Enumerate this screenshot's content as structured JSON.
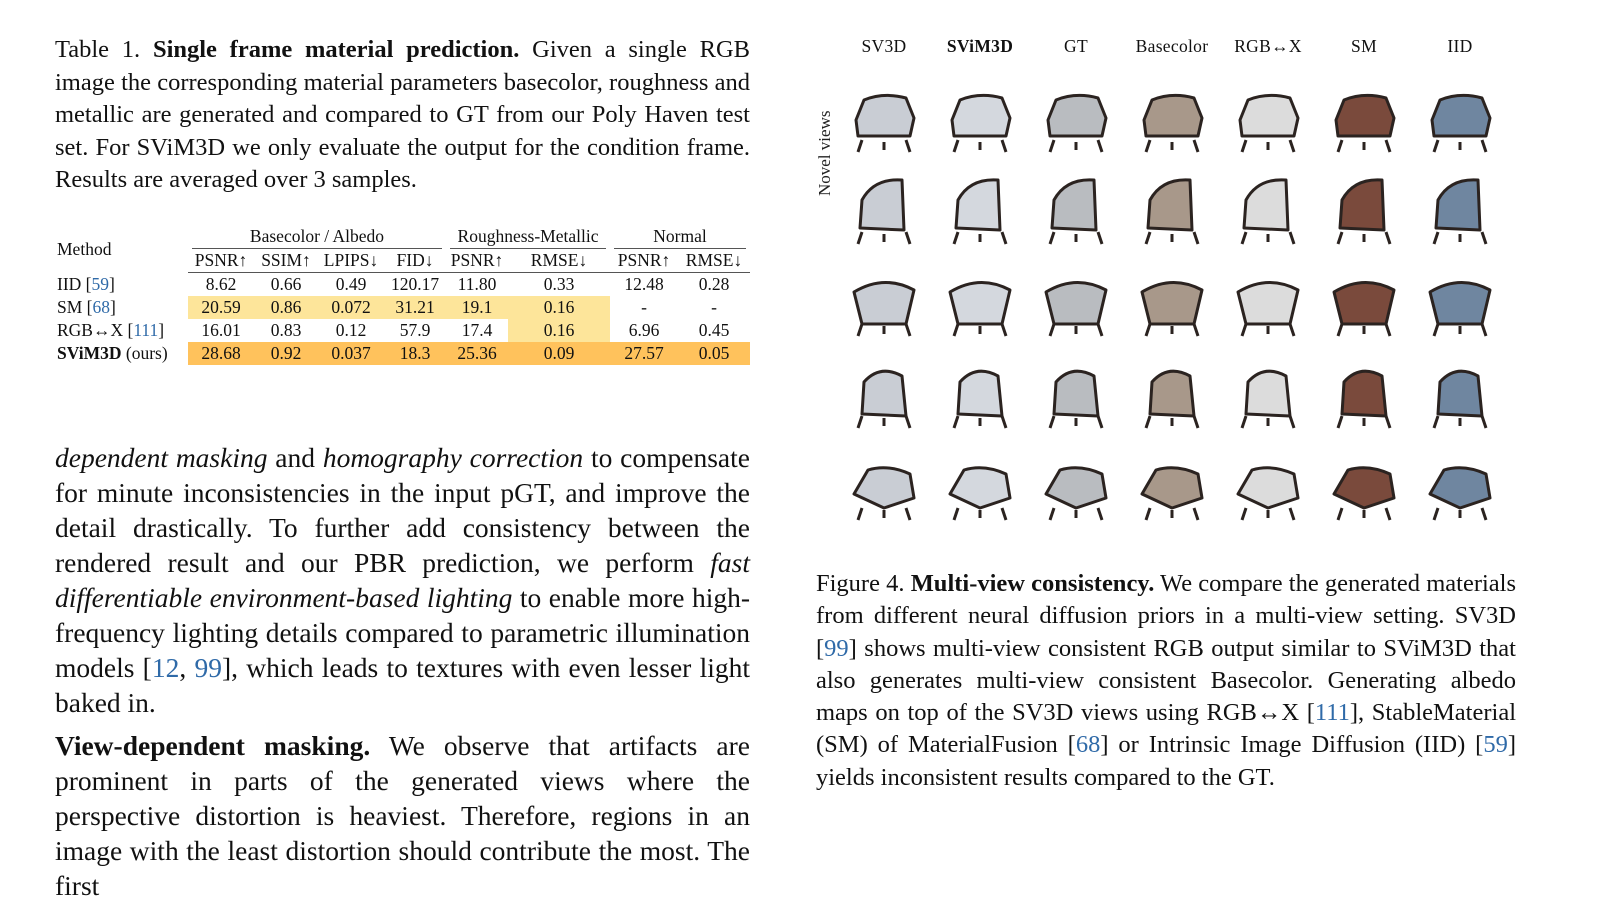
{
  "table_caption": {
    "label": "Table 1.",
    "title": "Single frame material prediction.",
    "text": "Given a single RGB image the corresponding material parameters basecolor, roughness and metallic are generated and compared to GT from our Poly Haven test set. For SViM3D we only evaluate the output for the condition frame. Results are averaged over 3 samples."
  },
  "table": {
    "method_header": "Method",
    "groups": [
      "Basecolor / Albedo",
      "Roughness-Metallic",
      "Normal"
    ],
    "columns": [
      "PSNR↑",
      "SSIM↑",
      "LPIPS↓",
      "FID↓",
      "PSNR↑",
      "RMSE↓",
      "PSNR↑",
      "RMSE↓"
    ],
    "rows": [
      {
        "method": "IID",
        "cite": "59",
        "values": [
          "8.62",
          "0.66",
          "0.49",
          "120.17",
          "11.80",
          "0.33",
          "12.48",
          "0.28"
        ]
      },
      {
        "method": "SM",
        "cite": "68",
        "values": [
          "20.59",
          "0.86",
          "0.072",
          "31.21",
          "19.1",
          "0.16",
          "-",
          "-"
        ]
      },
      {
        "method": "RGB↔X",
        "cite": "111",
        "values": [
          "16.01",
          "0.83",
          "0.12",
          "57.9",
          "17.4",
          "0.16",
          "6.96",
          "0.45"
        ]
      },
      {
        "method": "SViM3D",
        "suffix": "(ours)",
        "values": [
          "28.68",
          "0.92",
          "0.037",
          "18.3",
          "25.36",
          "0.09",
          "27.57",
          "0.05"
        ]
      }
    ],
    "highlight_colors": {
      "best": "#ffc25c",
      "second": "#fde59a",
      "third": "#fff6c4"
    }
  },
  "body": {
    "p1_parts": [
      {
        "t": "dependent masking",
        "i": true
      },
      {
        "t": " and "
      },
      {
        "t": "homography correction",
        "i": true
      },
      {
        "t": " to compensate for minute inconsistencies in the input pGT, and improve the detail drastically. To further add consistency between the rendered result and our PBR prediction, we perform "
      },
      {
        "t": "fast differentiable environment-based lighting",
        "i": true
      },
      {
        "t": " to enable more high-frequency lighting details compared to parametric illumination models ["
      },
      {
        "t": "12",
        "c": true
      },
      {
        "t": ", "
      },
      {
        "t": "99",
        "c": true
      },
      {
        "t": "], which leads to textures with even lesser light baked in."
      }
    ],
    "p2_title": "View-dependent masking.",
    "p2_text": "We observe that artifacts are prominent in parts of the generated views where the perspective distortion is heaviest. Therefore, regions in an image with the least distortion should contribute the most. The first"
  },
  "figure": {
    "columns": [
      "SV3D",
      "SViM3D",
      "GT",
      "Basecolor",
      "RGB↔X",
      "SM",
      "IID"
    ],
    "row_label": "Novel views",
    "cell_colors": [
      "#c9cdd4",
      "#d4d8de",
      "#b9bcc0",
      "#a8988a",
      "#dcdcdc",
      "#7a4a3c",
      "#6f86a0"
    ],
    "caption_label": "Figure 4.",
    "caption_title": "Multi-view consistency.",
    "caption_parts": [
      {
        "t": " We compare the generated materials from different neural diffusion priors in a multi-view setting. SV3D ["
      },
      {
        "t": "99",
        "c": true
      },
      {
        "t": "] shows multi-view consistent RGB output similar to SViM3D that also generates multi-view consistent Basecolor. Generating albedo maps on top of the SV3D views using RGB↔X ["
      },
      {
        "t": "111",
        "c": true
      },
      {
        "t": "], StableMaterial (SM) of MaterialFusion ["
      },
      {
        "t": "68",
        "c": true
      },
      {
        "t": "] or Intrinsic Image Diffusion (IID) ["
      },
      {
        "t": "59",
        "c": true
      },
      {
        "t": "] yields inconsistent results compared to the GT."
      }
    ]
  }
}
